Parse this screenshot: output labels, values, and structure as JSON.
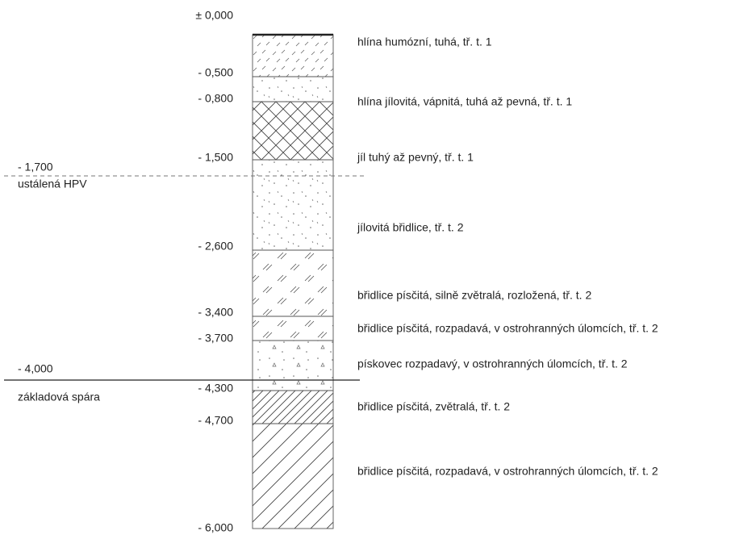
{
  "depth_labels": [
    "± 0,000",
    "- 0,500",
    "- 0,800",
    "- 1,500",
    "- 2,600",
    "- 3,400",
    "- 3,700",
    "- 4,300",
    "- 4,700",
    "- 6,000"
  ],
  "layers": [
    {
      "description": "hlína humózní, tuhá, tř. t. 1"
    },
    {
      "description": "hlína jílovitá, vápnitá, tuhá až pevná, tř. t. 1"
    },
    {
      "description": "jíl tuhý až pevný, tř. t. 1"
    },
    {
      "description": "jílovitá břidlice, tř. t. 2"
    },
    {
      "description": "břidlice písčitá, silně zvětralá, rozložená, tř. t. 2"
    },
    {
      "description": "břidlice písčitá, rozpadavá, v ostrohranných úlomcích, tř. t. 2"
    },
    {
      "description": "pískovec rozpadavý, v ostrohranných úlomcích, tř. t. 2"
    },
    {
      "description": "břidlice písčitá, zvětralá, tř. t. 2"
    },
    {
      "description": "břidlice písčitá, rozpadavá, v ostrohranných úlomcích, tř. t. 2"
    }
  ],
  "markers": [
    {
      "depth": "- 1,700",
      "label": "ustálená HPV"
    },
    {
      "depth": "- 4,000",
      "label": "základová spára"
    }
  ]
}
